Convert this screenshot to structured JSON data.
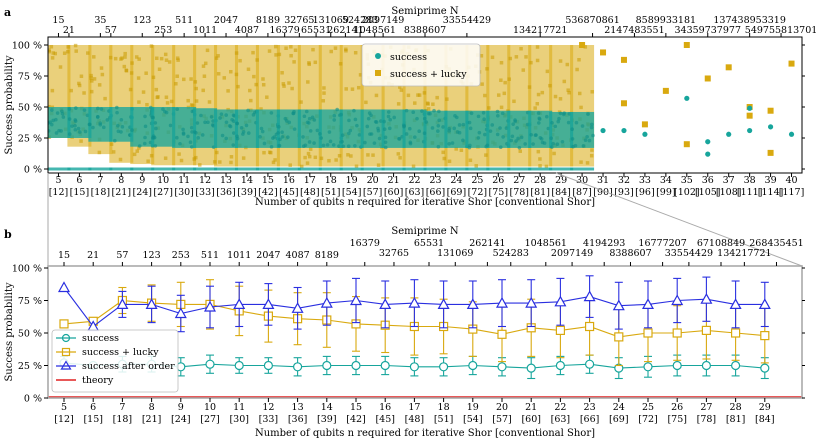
{
  "chart_data": [
    {
      "type": "scatter",
      "panel": "a",
      "title": "Semiprime N",
      "xlabel": "Number of qubits n required for iterative Shor [conventional Shor]",
      "ylabel": "Success probability",
      "ylim": [
        0,
        100
      ],
      "xlim": [
        4.5,
        40.5
      ],
      "yticks": [
        "0 %",
        "25 %",
        "50 %",
        "75 %",
        "100 %"
      ],
      "n_values": [
        5,
        6,
        7,
        8,
        9,
        10,
        11,
        12,
        13,
        14,
        15,
        16,
        17,
        18,
        19,
        20,
        21,
        22,
        23,
        24,
        25,
        26,
        27,
        28,
        29,
        30,
        31,
        32,
        33,
        34,
        35,
        36,
        37,
        38,
        39,
        40
      ],
      "bottom_labels": [
        "5",
        "6",
        "7",
        "8",
        "9",
        "10",
        "11",
        "12",
        "13",
        "14",
        "15",
        "16",
        "17",
        "18",
        "19",
        "20",
        "21",
        "22",
        "23",
        "24",
        "25",
        "26",
        "27",
        "28",
        "29",
        "30",
        "31",
        "32",
        "33",
        "34",
        "35",
        "36",
        "37",
        "38",
        "39",
        "40"
      ],
      "bottom_conv": [
        "[12]",
        "[15]",
        "[18]",
        "[21]",
        "[24]",
        "[27]",
        "[30]",
        "[33]",
        "[36]",
        "[39]",
        "[42]",
        "[45]",
        "[48]",
        "[51]",
        "[54]",
        "[57]",
        "[60]",
        "[63]",
        "[66]",
        "[69]",
        "[72]",
        "[75]",
        "[78]",
        "[81]",
        "[84]",
        "[87]",
        "[90]",
        "[93]",
        "[96]",
        "[99]",
        "[102]",
        "[105]",
        "[108]",
        "[111]",
        "[114]",
        "[117]"
      ],
      "top_row1": [
        {
          "n": 5,
          "label": "15"
        },
        {
          "n": 7,
          "label": "35"
        },
        {
          "n": 9,
          "label": "123"
        },
        {
          "n": 11,
          "label": "511"
        },
        {
          "n": 13,
          "label": "2047"
        },
        {
          "n": 15,
          "label": "8189"
        },
        {
          "n": 16.5,
          "label": "32765"
        },
        {
          "n": 18,
          "label": "131069"
        },
        {
          "n": 19.4,
          "label": "524283"
        },
        {
          "n": 20.5,
          "label": "2097149"
        },
        {
          "n": 24.5,
          "label": "33554429"
        },
        {
          "n": 30.5,
          "label": "536870861"
        },
        {
          "n": 34,
          "label": "8589933181"
        },
        {
          "n": 38,
          "label": "137438953319"
        }
      ],
      "top_row2": [
        {
          "n": 5.5,
          "label": "21"
        },
        {
          "n": 7.5,
          "label": "57"
        },
        {
          "n": 10,
          "label": "253"
        },
        {
          "n": 12,
          "label": "1011"
        },
        {
          "n": 14,
          "label": "4087"
        },
        {
          "n": 15.8,
          "label": "16379"
        },
        {
          "n": 17.3,
          "label": "65531"
        },
        {
          "n": 18.7,
          "label": "262141"
        },
        {
          "n": 20.1,
          "label": "1048561"
        },
        {
          "n": 22.5,
          "label": "8388607"
        },
        {
          "n": 28,
          "label": "134217721"
        },
        {
          "n": 32.5,
          "label": "2147483551"
        },
        {
          "n": 36,
          "label": "34359737977"
        },
        {
          "n": 39.5,
          "label": "549755813701"
        }
      ],
      "series": [
        {
          "name": "success",
          "color": "#17A59C",
          "marker": "circle"
        },
        {
          "name": "success + lucky",
          "color": "#D9A90F",
          "marker": "square"
        }
      ],
      "band_success": [
        {
          "n": 5,
          "lo": 25,
          "hi": 50
        },
        {
          "n": 6,
          "lo": 25,
          "hi": 50
        },
        {
          "n": 7,
          "lo": 22,
          "hi": 50
        },
        {
          "n": 8,
          "lo": 22,
          "hi": 50
        },
        {
          "n": 9,
          "lo": 18,
          "hi": 50
        },
        {
          "n": 10,
          "lo": 18,
          "hi": 50
        },
        {
          "n": 11,
          "lo": 17,
          "hi": 50
        },
        {
          "n": 12,
          "lo": 17,
          "hi": 49
        },
        {
          "n": 13,
          "lo": 17,
          "hi": 48
        },
        {
          "n": 14,
          "lo": 17,
          "hi": 48
        },
        {
          "n": 15,
          "lo": 17,
          "hi": 48
        },
        {
          "n": 16,
          "lo": 17,
          "hi": 48
        },
        {
          "n": 17,
          "lo": 17,
          "hi": 48
        },
        {
          "n": 18,
          "lo": 17,
          "hi": 48
        },
        {
          "n": 19,
          "lo": 17,
          "hi": 48
        },
        {
          "n": 20,
          "lo": 17,
          "hi": 48
        },
        {
          "n": 21,
          "lo": 17,
          "hi": 48
        },
        {
          "n": 22,
          "lo": 17,
          "hi": 48
        },
        {
          "n": 23,
          "lo": 17,
          "hi": 47
        },
        {
          "n": 24,
          "lo": 17,
          "hi": 47
        },
        {
          "n": 25,
          "lo": 17,
          "hi": 47
        },
        {
          "n": 26,
          "lo": 17,
          "hi": 47
        },
        {
          "n": 27,
          "lo": 17,
          "hi": 47
        },
        {
          "n": 28,
          "lo": 17,
          "hi": 47
        },
        {
          "n": 29,
          "lo": 17,
          "hi": 46
        },
        {
          "n": 30,
          "lo": 17,
          "hi": 46
        }
      ],
      "band_lucky": [
        {
          "n": 5,
          "lo": 25,
          "hi": 100
        },
        {
          "n": 6,
          "lo": 18,
          "hi": 100
        },
        {
          "n": 7,
          "lo": 12,
          "hi": 100
        },
        {
          "n": 8,
          "lo": 5,
          "hi": 100
        },
        {
          "n": 9,
          "lo": 4,
          "hi": 100
        },
        {
          "n": 10,
          "lo": 3,
          "hi": 100
        },
        {
          "n": 11,
          "lo": 3,
          "hi": 100
        },
        {
          "n": 12,
          "lo": 3,
          "hi": 100
        },
        {
          "n": 13,
          "lo": 2,
          "hi": 100
        },
        {
          "n": 14,
          "lo": 2,
          "hi": 100
        },
        {
          "n": 15,
          "lo": 2,
          "hi": 100
        },
        {
          "n": 16,
          "lo": 2,
          "hi": 100
        },
        {
          "n": 17,
          "lo": 2,
          "hi": 100
        },
        {
          "n": 18,
          "lo": 2,
          "hi": 100
        },
        {
          "n": 19,
          "lo": 2,
          "hi": 100
        },
        {
          "n": 20,
          "lo": 2,
          "hi": 100
        },
        {
          "n": 21,
          "lo": 2,
          "hi": 100
        },
        {
          "n": 22,
          "lo": 2,
          "hi": 100
        },
        {
          "n": 23,
          "lo": 2,
          "hi": 100
        },
        {
          "n": 24,
          "lo": 2,
          "hi": 100
        },
        {
          "n": 25,
          "lo": 2,
          "hi": 100
        },
        {
          "n": 26,
          "lo": 2,
          "hi": 100
        },
        {
          "n": 27,
          "lo": 2,
          "hi": 100
        },
        {
          "n": 28,
          "lo": 2,
          "hi": 100
        },
        {
          "n": 29,
          "lo": 2,
          "hi": 100
        },
        {
          "n": 30,
          "lo": 2,
          "hi": 100
        }
      ],
      "sparse_success": [
        [
          31,
          31
        ],
        [
          32,
          31
        ],
        [
          33,
          28
        ],
        [
          35,
          57
        ],
        [
          36,
          22
        ],
        [
          36,
          12
        ],
        [
          37,
          28
        ],
        [
          38,
          49
        ],
        [
          38,
          31
        ],
        [
          39,
          34
        ],
        [
          40,
          28
        ]
      ],
      "sparse_lucky": [
        [
          30,
          100
        ],
        [
          31,
          94
        ],
        [
          32,
          53
        ],
        [
          32,
          88
        ],
        [
          33,
          36
        ],
        [
          34,
          63
        ],
        [
          35,
          100
        ],
        [
          35,
          20
        ],
        [
          36,
          73
        ],
        [
          37,
          82
        ],
        [
          38,
          50
        ],
        [
          38,
          43
        ],
        [
          39,
          47
        ],
        [
          39,
          13
        ],
        [
          40,
          85
        ]
      ],
      "legend": [
        "success",
        "success + lucky"
      ]
    },
    {
      "type": "line",
      "panel": "b",
      "title": "Semiprime N",
      "xlabel": "Number of qubits n required for iterative Shor [conventional Shor]",
      "ylabel": "Success probability",
      "ylim": [
        0,
        100
      ],
      "yticks": [
        "0 %",
        "25 %",
        "50 %",
        "75 %",
        "100 %"
      ],
      "x": [
        5,
        6,
        7,
        8,
        9,
        10,
        11,
        12,
        13,
        14,
        15,
        16,
        17,
        18,
        19,
        20,
        21,
        22,
        23,
        24,
        25,
        26,
        27,
        28,
        29
      ],
      "bottom_labels": [
        "5",
        "6",
        "7",
        "8",
        "9",
        "10",
        "11",
        "12",
        "13",
        "14",
        "15",
        "16",
        "17",
        "18",
        "19",
        "20",
        "21",
        "22",
        "23",
        "24",
        "25",
        "26",
        "27",
        "28",
        "29"
      ],
      "bottom_conv": [
        "[12]",
        "[15]",
        "[18]",
        "[21]",
        "[24]",
        "[27]",
        "[30]",
        "[33]",
        "[36]",
        "[39]",
        "[42]",
        "[45]",
        "[48]",
        "[51]",
        "[54]",
        "[57]",
        "[60]",
        "[63]",
        "[66]",
        "[69]",
        "[72]",
        "[75]",
        "[78]",
        "[81]",
        "[84]"
      ],
      "top_row1": [
        {
          "n": 15.3,
          "label": "16379"
        },
        {
          "n": 17.5,
          "label": "65531"
        },
        {
          "n": 19.5,
          "label": "262141"
        },
        {
          "n": 21.5,
          "label": "1048561"
        },
        {
          "n": 23.5,
          "label": "4194293"
        },
        {
          "n": 25.5,
          "label": "16777207"
        },
        {
          "n": 27.5,
          "label": "67108849"
        },
        {
          "n": 29.4,
          "label": "268435451"
        }
      ],
      "top_row2": [
        {
          "n": 5,
          "label": "15"
        },
        {
          "n": 6,
          "label": "21"
        },
        {
          "n": 7,
          "label": "57"
        },
        {
          "n": 8,
          "label": "123"
        },
        {
          "n": 9,
          "label": "253"
        },
        {
          "n": 10,
          "label": "511"
        },
        {
          "n": 11,
          "label": "1011"
        },
        {
          "n": 12,
          "label": "2047"
        },
        {
          "n": 13,
          "label": "4087"
        },
        {
          "n": 14,
          "label": "8189"
        }
      ],
      "top_row2b": [
        {
          "n": 16.3,
          "label": "32765"
        },
        {
          "n": 18.4,
          "label": "131069"
        },
        {
          "n": 20.3,
          "label": "524283"
        },
        {
          "n": 22.4,
          "label": "2097149"
        },
        {
          "n": 24.4,
          "label": "8388607"
        },
        {
          "n": 26.4,
          "label": "33554429"
        },
        {
          "n": 28.3,
          "label": "134217721"
        }
      ],
      "series": [
        {
          "name": "success",
          "color": "#17A59C",
          "marker": "circle",
          "values": [
            27,
            25,
            26,
            26,
            24,
            26,
            25,
            25,
            24,
            25,
            25,
            25,
            24,
            24,
            25,
            24,
            23,
            25,
            26,
            23,
            24,
            25,
            25,
            25,
            23
          ],
          "err": [
            5,
            0,
            6,
            6,
            7,
            7,
            6,
            6,
            7,
            7,
            7,
            7,
            7,
            7,
            7,
            7,
            8,
            7,
            7,
            8,
            8,
            8,
            8,
            8,
            8
          ]
        },
        {
          "name": "success + lucky",
          "color": "#D9A90F",
          "marker": "square",
          "values": [
            57,
            59,
            75,
            73,
            72,
            72,
            67,
            63,
            61,
            60,
            57,
            56,
            55,
            55,
            53,
            49,
            54,
            52,
            55,
            47,
            50,
            50,
            52,
            50,
            48
          ],
          "err": [
            0,
            0,
            10,
            14,
            17,
            19,
            19,
            20,
            20,
            21,
            21,
            21,
            22,
            21,
            21,
            21,
            22,
            21,
            22,
            22,
            22,
            21,
            22,
            21,
            21
          ]
        },
        {
          "name": "success after order",
          "color": "#2A2FE0",
          "marker": "triangle",
          "values": [
            85,
            55,
            72,
            72,
            65,
            70,
            72,
            72,
            69,
            73,
            75,
            72,
            73,
            72,
            72,
            73,
            73,
            74,
            78,
            71,
            72,
            75,
            76,
            72,
            72
          ],
          "err": [
            0,
            0,
            10,
            14,
            14,
            16,
            17,
            16,
            16,
            17,
            17,
            18,
            18,
            18,
            18,
            18,
            18,
            18,
            16,
            18,
            18,
            17,
            17,
            18,
            17
          ]
        }
      ],
      "theory_color": "#E02020",
      "legend": [
        "success",
        "success + lucky",
        "success after order",
        "theory"
      ]
    }
  ]
}
